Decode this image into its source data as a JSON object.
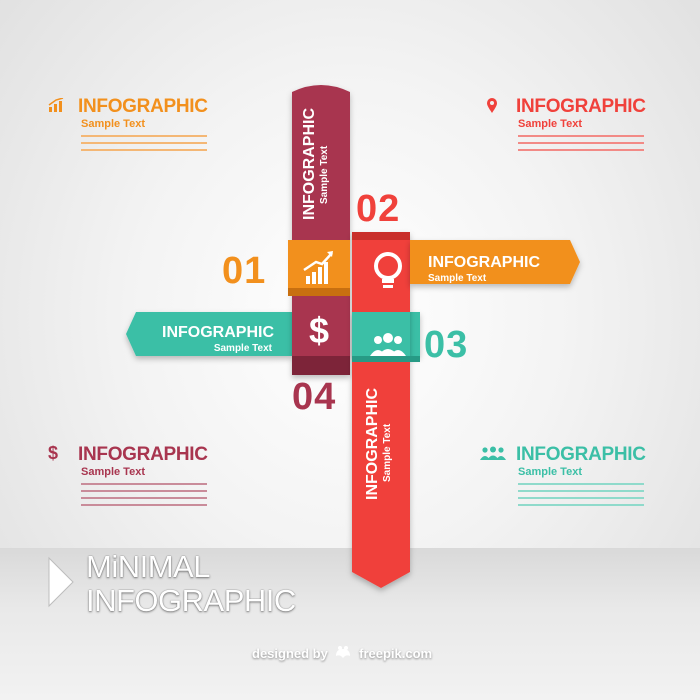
{
  "colors": {
    "orange": "#f2901d",
    "red": "#f0413b",
    "maroon": "#a8354f",
    "teal": "#3bbfa6"
  },
  "blocks": {
    "top_left": {
      "title": "INFOGRAPHIC",
      "sub": "Sample Text",
      "icon": "bar-chart-icon"
    },
    "top_right": {
      "title": "INFOGRAPHIC",
      "sub": "Sample Text",
      "icon": "location-pin-icon"
    },
    "bottom_left": {
      "title": "INFOGRAPHIC",
      "sub": "Sample Text",
      "icon": "dollar-icon",
      "icon_text": "$"
    },
    "bottom_right": {
      "title": "INFOGRAPHIC",
      "sub": "Sample Text",
      "icon": "people-icon"
    }
  },
  "diagram": {
    "num_01": "01",
    "num_02": "02",
    "num_03": "03",
    "num_04": "04",
    "vertical_top": {
      "title": "INFOGRAPHIC",
      "sub": "Sample Text"
    },
    "vertical_bottom": {
      "title": "INFOGRAPHIC",
      "sub": "Sample Text"
    },
    "right_arrow": {
      "title": "INFOGRAPHIC",
      "sub": "Sample Text"
    },
    "left_arrow": {
      "title": "INFOGRAPHIC",
      "sub": "Sample Text"
    },
    "dollar_symbol": "$"
  },
  "headline": {
    "line1": "MiNIMAL",
    "line2": "INFOGRAPHIC"
  },
  "credit": {
    "prefix": "designed by",
    "brand": "freepik.com"
  }
}
